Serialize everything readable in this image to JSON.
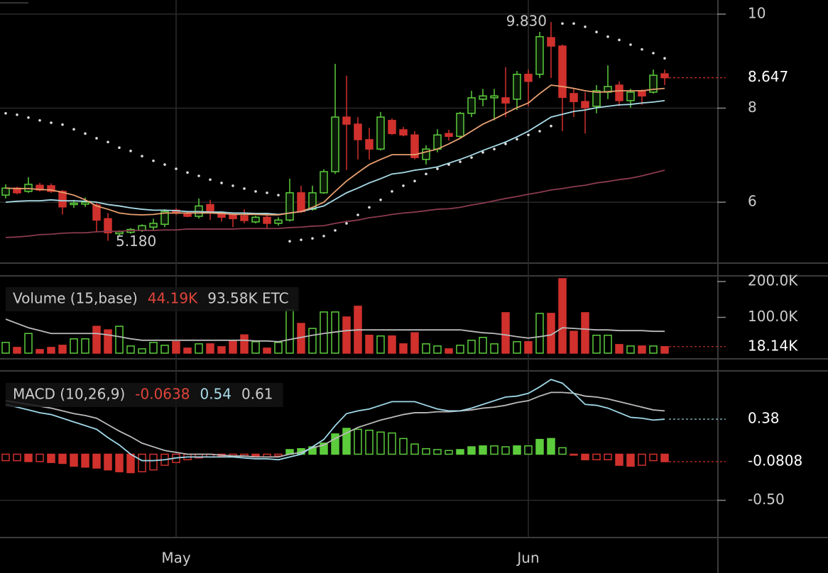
{
  "chart_data": [
    {
      "type": "candlestick",
      "ylim": [
        4.72,
        10.3
      ],
      "yticks": [
        6,
        8,
        10
      ],
      "grid": true,
      "up_color": "#5ccc3c",
      "down_color": "#d0312d",
      "open": [
        6.15,
        6.3,
        6.23,
        6.36,
        6.35,
        6.23,
        5.95,
        5.96,
        5.94,
        5.65,
        5.33,
        5.36,
        5.4,
        5.47,
        5.53,
        5.83,
        5.76,
        5.7,
        5.95,
        5.77,
        5.73,
        5.71,
        5.58,
        5.68,
        5.55,
        5.62,
        6.2,
        5.85,
        6.2,
        6.65,
        7.81,
        7.66,
        7.33,
        7.13,
        7.74,
        7.54,
        7.43,
        6.91,
        7.13,
        7.46,
        7.4,
        7.89,
        8.19,
        8.22,
        8.22,
        8.19,
        8.72,
        8.72,
        9.5,
        9.32,
        8.31,
        8.14,
        8.04,
        8.34,
        8.49,
        8.16,
        8.37,
        8.34,
        8.73
      ],
      "high": [
        6.38,
        6.33,
        6.53,
        6.41,
        6.4,
        6.26,
        6.05,
        6.1,
        5.98,
        5.77,
        5.4,
        5.45,
        5.53,
        5.65,
        5.85,
        5.87,
        5.79,
        6.08,
        6.05,
        5.8,
        5.77,
        5.85,
        5.71,
        5.73,
        5.68,
        6.5,
        6.35,
        6.35,
        6.7,
        8.94,
        8.69,
        7.81,
        7.58,
        7.92,
        7.78,
        7.6,
        7.51,
        7.21,
        7.55,
        7.54,
        7.92,
        8.37,
        8.41,
        8.41,
        8.87,
        8.79,
        8.82,
        9.62,
        9.83,
        9.35,
        8.41,
        8.34,
        8.49,
        8.91,
        8.57,
        8.41,
        8.4,
        8.82,
        8.82
      ],
      "low": [
        6.08,
        6.17,
        6.2,
        6.23,
        6.2,
        5.74,
        5.88,
        5.9,
        5.37,
        5.18,
        5.28,
        5.33,
        5.37,
        5.4,
        5.47,
        5.73,
        5.68,
        5.65,
        5.62,
        5.59,
        5.47,
        5.55,
        5.55,
        5.44,
        5.5,
        5.59,
        5.77,
        5.82,
        6.18,
        6.6,
        6.68,
        6.91,
        6.91,
        7.1,
        7.43,
        7.4,
        6.91,
        6.8,
        7.06,
        7.31,
        7.36,
        7.81,
        8.04,
        7.74,
        7.81,
        7.96,
        8.04,
        8.64,
        8.64,
        7.51,
        7.81,
        7.46,
        7.89,
        8.19,
        8.04,
        8.01,
        8.07,
        8.31,
        8.49
      ],
      "close": [
        6.3,
        6.2,
        6.38,
        6.26,
        6.23,
        5.9,
        5.98,
        6.0,
        5.62,
        5.35,
        5.37,
        5.42,
        5.5,
        5.55,
        5.8,
        5.77,
        5.7,
        5.92,
        5.8,
        5.68,
        5.65,
        5.61,
        5.68,
        5.55,
        5.62,
        6.2,
        5.8,
        6.2,
        6.65,
        7.81,
        7.66,
        7.33,
        7.13,
        7.81,
        7.46,
        7.43,
        6.95,
        7.13,
        7.43,
        7.4,
        7.89,
        8.22,
        8.26,
        8.26,
        8.11,
        8.72,
        8.57,
        9.52,
        9.32,
        8.23,
        8.14,
        8.01,
        8.37,
        8.46,
        8.16,
        8.34,
        8.26,
        8.7,
        8.647
      ],
      "series": [
        {
          "color": "#8a3a4e",
          "values": [
            5.25,
            5.26,
            5.28,
            5.31,
            5.32,
            5.34,
            5.35,
            5.35,
            5.37,
            5.38,
            5.38,
            5.4,
            5.4,
            5.4,
            5.41,
            5.41,
            5.43,
            5.43,
            5.43,
            5.43,
            5.43,
            5.44,
            5.44,
            5.44,
            5.44,
            5.46,
            5.47,
            5.49,
            5.5,
            5.55,
            5.59,
            5.62,
            5.67,
            5.7,
            5.74,
            5.77,
            5.79,
            5.82,
            5.85,
            5.86,
            5.89,
            5.94,
            5.98,
            6.03,
            6.08,
            6.12,
            6.17,
            6.21,
            6.26,
            6.29,
            6.33,
            6.36,
            6.41,
            6.44,
            6.48,
            6.51,
            6.56,
            6.62,
            6.68
          ]
        },
        {
          "color": "#a8dce8",
          "values": [
            6.0,
            6.02,
            6.03,
            6.03,
            6.05,
            6.03,
            6.03,
            6.02,
            6.0,
            5.95,
            5.92,
            5.88,
            5.85,
            5.83,
            5.83,
            5.82,
            5.8,
            5.8,
            5.79,
            5.79,
            5.77,
            5.77,
            5.76,
            5.76,
            5.74,
            5.77,
            5.8,
            5.86,
            5.92,
            6.06,
            6.2,
            6.3,
            6.41,
            6.5,
            6.6,
            6.63,
            6.68,
            6.71,
            6.75,
            6.83,
            6.91,
            7.0,
            7.1,
            7.19,
            7.28,
            7.39,
            7.51,
            7.66,
            7.81,
            7.87,
            7.93,
            7.96,
            8.01,
            8.04,
            8.07,
            8.08,
            8.11,
            8.13,
            8.16
          ]
        },
        {
          "color": "#e8a070",
          "values": [
            6.3,
            6.29,
            6.29,
            6.27,
            6.26,
            6.21,
            6.15,
            6.05,
            5.92,
            5.85,
            5.77,
            5.74,
            5.73,
            5.74,
            5.77,
            5.77,
            5.77,
            5.77,
            5.77,
            5.76,
            5.74,
            5.74,
            5.74,
            5.73,
            5.73,
            5.77,
            5.8,
            5.89,
            6.0,
            6.23,
            6.45,
            6.63,
            6.8,
            6.91,
            7.01,
            7.01,
            7.01,
            7.07,
            7.13,
            7.24,
            7.36,
            7.51,
            7.66,
            7.77,
            7.89,
            8.01,
            8.11,
            8.31,
            8.49,
            8.46,
            8.42,
            8.37,
            8.34,
            8.35,
            8.37,
            8.37,
            8.37,
            8.4,
            8.42
          ]
        },
        {
          "color": "#dddddd",
          "style": "dots",
          "values": [
            7.89,
            7.86,
            7.8,
            7.74,
            7.69,
            7.65,
            7.55,
            7.46,
            7.36,
            7.28,
            7.16,
            7.09,
            6.98,
            6.88,
            6.8,
            6.71,
            6.63,
            6.56,
            6.48,
            6.41,
            6.35,
            6.29,
            6.23,
            6.2,
            6.15,
            5.17,
            5.2,
            5.23,
            5.28,
            5.4,
            5.55,
            5.73,
            5.89,
            6.05,
            6.23,
            6.35,
            6.45,
            6.6,
            6.71,
            6.8,
            6.86,
            6.95,
            7.06,
            7.13,
            7.24,
            7.34,
            7.43,
            7.51,
            7.62,
            9.8,
            9.8,
            9.73,
            9.62,
            9.52,
            9.45,
            9.35,
            9.25,
            9.17,
            9.06
          ]
        }
      ],
      "high_label": {
        "value": 9.83,
        "label": "9.830"
      },
      "low_label": {
        "value": 5.18,
        "label": "5.180"
      },
      "last_labels": [
        {
          "value": 8.647,
          "label": "8.647",
          "color": "#d0312d"
        }
      ]
    },
    {
      "type": "bar",
      "ylim": [
        -13900,
        213900
      ],
      "yticks": [
        {
          "value": 100000,
          "label": "100.0K"
        },
        {
          "value": 200000,
          "label": "200.0K"
        }
      ],
      "grid": false,
      "color_by": "candles",
      "up_color": "#5ccc3c",
      "down_color": "#d0312d",
      "legend": [
        {
          "text": "Volume (15,base)",
          "color": "#cccccc"
        },
        {
          "text": "44.19K",
          "color": "#e0443a"
        },
        {
          "text": "93.58K ETC",
          "color": "#cccccc"
        }
      ],
      "values": [
        30000,
        16000,
        55000,
        10000,
        16000,
        22000,
        40000,
        40000,
        75000,
        65000,
        75000,
        20000,
        12000,
        30000,
        22000,
        32000,
        14000,
        26000,
        26000,
        18000,
        36000,
        51000,
        32000,
        14000,
        30000,
        121000,
        83000,
        69000,
        115000,
        115000,
        101000,
        131000,
        50000,
        48000,
        48000,
        26000,
        57000,
        26000,
        20000,
        12000,
        22000,
        36000,
        44000,
        26000,
        113000,
        32000,
        32000,
        111000,
        111000,
        208000,
        61000,
        113000,
        50000,
        50000,
        24000,
        20000,
        20000,
        20000,
        18140
      ],
      "series": [
        {
          "color": "#bbbbbb",
          "values": [
            95000,
            83000,
            71000,
            63000,
            55000,
            55000,
            55000,
            55000,
            55000,
            51000,
            46000,
            40000,
            36000,
            36000,
            36000,
            36000,
            36000,
            36000,
            36000,
            36000,
            36000,
            36000,
            34000,
            34000,
            32000,
            38000,
            44000,
            50000,
            55000,
            59000,
            63000,
            65000,
            65000,
            65000,
            65000,
            65000,
            65000,
            65000,
            65000,
            65000,
            65000,
            61000,
            57000,
            55000,
            51000,
            46000,
            42000,
            46000,
            51000,
            71000,
            69000,
            67000,
            65000,
            65000,
            63000,
            63000,
            63000,
            61000,
            61000
          ]
        }
      ],
      "last_labels": [
        {
          "value": 18140,
          "label": "18.14K",
          "color": "#d0312d"
        }
      ]
    },
    {
      "type": "bar",
      "ylim": [
        -0.896,
        0.888
      ],
      "yticks": [
        {
          "value": -0.5,
          "label": "-0.50"
        }
      ],
      "grid": true,
      "color_by": "sign",
      "up_color": "#5ccc3c",
      "down_color": "#d0312d",
      "legend": [
        {
          "text": "MACD (10,26,9)",
          "color": "#cccccc"
        },
        {
          "text": "-0.0638",
          "color": "#e0443a"
        },
        {
          "text": "0.54",
          "color": "#a8dce8"
        },
        {
          "text": "0.61",
          "color": "#cccccc"
        }
      ],
      "categories": [
        null,
        null,
        null,
        null,
        null,
        null,
        null,
        null,
        null,
        null,
        null,
        null,
        null,
        null,
        null,
        "May",
        null,
        null,
        null,
        null,
        null,
        null,
        null,
        null,
        null,
        null,
        null,
        null,
        null,
        null,
        null,
        null,
        null,
        null,
        null,
        null,
        null,
        null,
        null,
        null,
        null,
        null,
        null,
        null,
        null,
        null,
        "Jun",
        null,
        null,
        null,
        null,
        null,
        null,
        null,
        null,
        null,
        null,
        null,
        null
      ],
      "values": [
        -0.07,
        -0.07,
        -0.08,
        -0.08,
        -0.09,
        -0.1,
        -0.13,
        -0.14,
        -0.15,
        -0.17,
        -0.19,
        -0.2,
        -0.19,
        -0.17,
        -0.12,
        -0.09,
        -0.06,
        -0.04,
        -0.03,
        -0.02,
        -0.02,
        -0.02,
        -0.03,
        -0.03,
        -0.02,
        0.05,
        0.06,
        0.08,
        0.12,
        0.22,
        0.28,
        0.27,
        0.26,
        0.24,
        0.23,
        0.17,
        0.11,
        0.06,
        0.05,
        0.04,
        0.05,
        0.08,
        0.09,
        0.09,
        0.08,
        0.09,
        0.09,
        0.16,
        0.17,
        0.07,
        -0.01,
        -0.06,
        -0.06,
        -0.06,
        -0.12,
        -0.13,
        -0.12,
        -0.07,
        -0.0808
      ],
      "series": [
        {
          "color": "#bbbbbb",
          "values": [
            0.58,
            0.56,
            0.54,
            0.52,
            0.5,
            0.47,
            0.44,
            0.42,
            0.39,
            0.32,
            0.25,
            0.19,
            0.12,
            0.08,
            0.04,
            0.02,
            0.0,
            0.0,
            0.0,
            -0.01,
            -0.02,
            -0.02,
            -0.03,
            -0.03,
            -0.03,
            0.0,
            0.02,
            0.07,
            0.1,
            0.17,
            0.23,
            0.29,
            0.33,
            0.37,
            0.4,
            0.43,
            0.45,
            0.45,
            0.46,
            0.46,
            0.47,
            0.48,
            0.5,
            0.51,
            0.53,
            0.56,
            0.58,
            0.63,
            0.67,
            0.67,
            0.66,
            0.63,
            0.62,
            0.6,
            0.57,
            0.54,
            0.51,
            0.48,
            0.47
          ]
        },
        {
          "color": "#9fd8e8",
          "values": [
            0.54,
            0.51,
            0.48,
            0.45,
            0.43,
            0.39,
            0.35,
            0.31,
            0.27,
            0.18,
            0.1,
            0.0,
            -0.07,
            -0.07,
            -0.06,
            -0.04,
            -0.03,
            -0.03,
            -0.03,
            -0.03,
            -0.03,
            -0.04,
            -0.05,
            -0.05,
            -0.06,
            -0.03,
            0.0,
            0.08,
            0.16,
            0.31,
            0.44,
            0.47,
            0.49,
            0.53,
            0.57,
            0.57,
            0.57,
            0.53,
            0.49,
            0.47,
            0.47,
            0.5,
            0.54,
            0.58,
            0.62,
            0.63,
            0.66,
            0.73,
            0.81,
            0.77,
            0.66,
            0.54,
            0.53,
            0.5,
            0.45,
            0.4,
            0.39,
            0.37,
            0.38
          ]
        }
      ],
      "last_labels": [
        {
          "value": 0.38,
          "label": "0.38",
          "color": "#9fd8e8"
        },
        {
          "value": -0.0808,
          "label": "-0.0808",
          "color": "#d0312d"
        }
      ]
    }
  ]
}
